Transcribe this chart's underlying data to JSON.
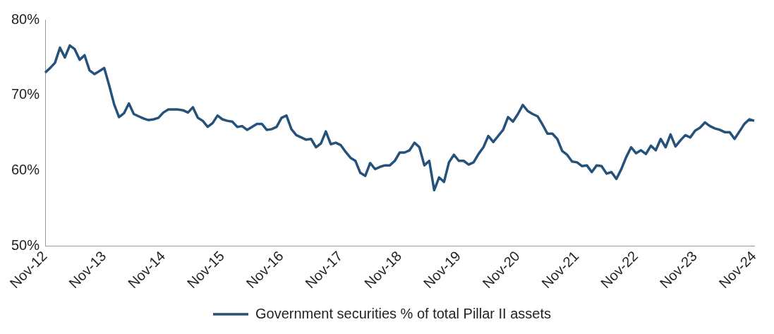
{
  "chart_data": {
    "type": "line",
    "categories": [
      "Nov-12",
      null,
      null,
      null,
      null,
      null,
      null,
      null,
      null,
      null,
      null,
      null,
      "Nov-13",
      null,
      null,
      null,
      null,
      null,
      null,
      null,
      null,
      null,
      null,
      null,
      "Nov-14",
      null,
      null,
      null,
      null,
      null,
      null,
      null,
      null,
      null,
      null,
      null,
      "Nov-15",
      null,
      null,
      null,
      null,
      null,
      null,
      null,
      null,
      null,
      null,
      null,
      "Nov-16",
      null,
      null,
      null,
      null,
      null,
      null,
      null,
      null,
      null,
      null,
      null,
      "Nov-17",
      null,
      null,
      null,
      null,
      null,
      null,
      null,
      null,
      null,
      null,
      null,
      "Nov-18",
      null,
      null,
      null,
      null,
      null,
      null,
      null,
      null,
      null,
      null,
      null,
      "Nov-19",
      null,
      null,
      null,
      null,
      null,
      null,
      null,
      null,
      null,
      null,
      null,
      "Nov-20",
      null,
      null,
      null,
      null,
      null,
      null,
      null,
      null,
      null,
      null,
      null,
      "Nov-21",
      null,
      null,
      null,
      null,
      null,
      null,
      null,
      null,
      null,
      null,
      null,
      "Nov-22",
      null,
      null,
      null,
      null,
      null,
      null,
      null,
      null,
      null,
      null,
      null,
      "Nov-23",
      null,
      null,
      null,
      null,
      null,
      null,
      null,
      null,
      null,
      null,
      null,
      "Nov-24"
    ],
    "ylim": [
      50,
      80
    ],
    "yticks": [
      {
        "value": 50,
        "label": "50%"
      },
      {
        "value": 60,
        "label": "60%"
      },
      {
        "value": 70,
        "label": "70%"
      },
      {
        "value": 80,
        "label": "80%"
      }
    ],
    "grid": false,
    "legend": "bottom",
    "marker": "none",
    "line_style": "solid",
    "series": [
      {
        "name": "Government securities % of total Pillar II assets",
        "color": "#24527a",
        "values": [
          73.0,
          73.6,
          74.3,
          76.3,
          75.0,
          76.6,
          76.1,
          74.7,
          75.3,
          73.3,
          72.8,
          73.2,
          73.6,
          71.3,
          68.8,
          67.1,
          67.6,
          68.9,
          67.5,
          67.2,
          66.9,
          66.7,
          66.8,
          67.0,
          67.7,
          68.1,
          68.1,
          68.1,
          68.0,
          67.7,
          68.4,
          67.0,
          66.6,
          65.8,
          66.3,
          67.3,
          66.8,
          66.6,
          66.5,
          65.8,
          65.9,
          65.4,
          65.8,
          66.2,
          66.2,
          65.4,
          65.5,
          65.8,
          67.0,
          67.3,
          65.5,
          64.7,
          64.4,
          64.1,
          64.2,
          63.1,
          63.6,
          65.2,
          63.5,
          63.7,
          63.4,
          62.5,
          61.7,
          61.3,
          59.7,
          59.3,
          61.0,
          60.2,
          60.5,
          60.7,
          60.7,
          61.3,
          62.4,
          62.4,
          62.7,
          63.7,
          63.1,
          60.7,
          61.3,
          57.4,
          59.1,
          58.5,
          61.1,
          62.1,
          61.3,
          61.3,
          60.8,
          61.1,
          62.2,
          63.1,
          64.6,
          63.8,
          64.6,
          65.4,
          67.1,
          66.5,
          67.5,
          68.7,
          67.9,
          67.5,
          67.2,
          66.1,
          64.9,
          64.9,
          64.2,
          62.6,
          62.1,
          61.2,
          61.1,
          60.6,
          60.7,
          59.8,
          60.7,
          60.6,
          59.6,
          59.8,
          58.9,
          60.2,
          61.8,
          63.1,
          62.3,
          62.7,
          62.2,
          63.3,
          62.7,
          64.2,
          63.1,
          64.8,
          63.2,
          64.0,
          64.7,
          64.4,
          65.3,
          65.7,
          66.4,
          65.9,
          65.6,
          65.4,
          65.1,
          65.1,
          64.2,
          65.2,
          66.2,
          66.8,
          66.6
        ]
      }
    ]
  }
}
